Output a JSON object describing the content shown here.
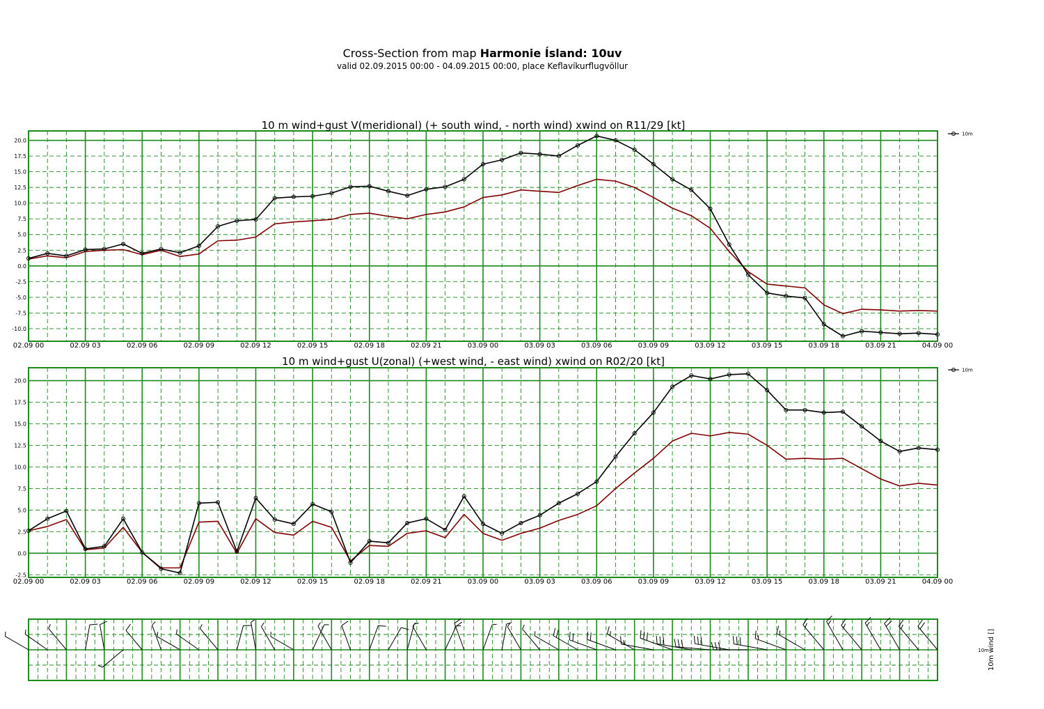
{
  "header": {
    "title_prefix": "Cross-Section from map ",
    "title_bold": "Harmonie Ísland: 10uv",
    "subtitle": "valid 02.09.2015 00:00 - 04.09.2015 00:00, place Keflavíkurflugvöllur"
  },
  "colors": {
    "grid": "#1a8a1a",
    "wind": "#800000",
    "gust": "#000000"
  },
  "chart_data": [
    {
      "type": "line",
      "title": "10 m wind+gust V(meridional) (+ south wind, - north wind) xwind on R11/29 [kt]",
      "x_tick_labels": [
        "02.09 00",
        "02.09 03",
        "02.09 06",
        "02.09 09",
        "02.09 12",
        "02.09 15",
        "02.09 18",
        "02.09 21",
        "03.09 00",
        "03.09 03",
        "03.09 06",
        "03.09 09",
        "03.09 12",
        "03.09 15",
        "03.09 18",
        "03.09 21",
        "04.09 00"
      ],
      "x_hours": [
        0,
        1,
        2,
        3,
        4,
        5,
        6,
        7,
        8,
        9,
        10,
        11,
        12,
        13,
        14,
        15,
        16,
        17,
        18,
        19,
        20,
        21,
        22,
        23,
        24,
        25,
        26,
        27,
        28,
        29,
        30,
        31,
        32,
        33,
        34,
        35,
        36,
        37,
        38,
        39,
        40,
        41,
        42,
        43,
        44,
        45,
        46,
        47,
        48
      ],
      "y_ticks": [
        20.0,
        17.5,
        15.0,
        12.5,
        10.0,
        7.5,
        5.0,
        2.5,
        0.0,
        -2.5,
        -5.0,
        -7.5,
        -10.0
      ],
      "ylim": [
        -12.0,
        21.5
      ],
      "legend": "10m",
      "series": [
        {
          "name": "10m gust",
          "color": "#000000",
          "markers": true,
          "values": [
            1.2,
            2.0,
            1.6,
            2.6,
            2.7,
            3.5,
            2.0,
            2.7,
            2.1,
            3.2,
            6.3,
            7.2,
            7.4,
            10.8,
            11.0,
            11.1,
            11.6,
            12.6,
            12.7,
            11.9,
            11.2,
            12.2,
            12.6,
            13.8,
            16.2,
            16.9,
            18.0,
            17.8,
            17.5,
            19.2,
            20.7,
            20.0,
            18.5,
            16.2,
            13.8,
            12.1,
            9.1,
            3.4,
            -1.4,
            -4.3,
            -4.8,
            -5.1,
            -9.3,
            -11.2,
            -10.4,
            -10.6,
            -10.8,
            -10.7,
            -10.9
          ]
        },
        {
          "name": "10m wind",
          "color": "#800000",
          "markers": false,
          "values": [
            1.1,
            1.6,
            1.3,
            2.3,
            2.5,
            2.6,
            1.8,
            2.5,
            1.5,
            1.9,
            4.0,
            4.1,
            4.6,
            6.7,
            7.0,
            7.2,
            7.4,
            8.2,
            8.4,
            7.9,
            7.5,
            8.2,
            8.6,
            9.4,
            10.9,
            11.3,
            12.1,
            11.9,
            11.7,
            12.8,
            13.8,
            13.5,
            12.5,
            10.9,
            9.2,
            8.0,
            6.0,
            2.3,
            -0.9,
            -2.9,
            -3.2,
            -3.5,
            -6.2,
            -7.6,
            -6.9,
            -7.0,
            -7.2,
            -7.1,
            -7.2
          ]
        }
      ]
    },
    {
      "type": "line",
      "title": "10 m wind+gust U(zonal) (+west wind, - east wind) xwind on R02/20 [kt]",
      "x_tick_labels": [
        "02.09 00",
        "02.09 03",
        "02.09 06",
        "02.09 09",
        "02.09 12",
        "02.09 15",
        "02.09 18",
        "02.09 21",
        "03.09 00",
        "03.09 03",
        "03.09 06",
        "03.09 09",
        "03.09 12",
        "03.09 15",
        "03.09 18",
        "03.09 21",
        "04.09 00"
      ],
      "x_hours": [
        0,
        1,
        2,
        3,
        4,
        5,
        6,
        7,
        8,
        9,
        10,
        11,
        12,
        13,
        14,
        15,
        16,
        17,
        18,
        19,
        20,
        21,
        22,
        23,
        24,
        25,
        26,
        27,
        28,
        29,
        30,
        31,
        32,
        33,
        34,
        35,
        36,
        37,
        38,
        39,
        40,
        41,
        42,
        43,
        44,
        45,
        46,
        47,
        48
      ],
      "y_ticks": [
        20.0,
        17.5,
        15.0,
        12.5,
        10.0,
        7.5,
        5.0,
        2.5,
        0.0,
        -2.5
      ],
      "ylim": [
        -2.8,
        21.5
      ],
      "legend": "10m",
      "series": [
        {
          "name": "10m gust",
          "color": "#000000",
          "markers": true,
          "values": [
            2.6,
            4.0,
            4.9,
            0.5,
            0.8,
            4.0,
            0.1,
            -1.8,
            -2.3,
            5.8,
            5.9,
            0.2,
            6.4,
            3.9,
            3.4,
            5.7,
            4.8,
            -1.1,
            1.4,
            1.2,
            3.5,
            4.0,
            2.7,
            6.6,
            3.4,
            2.3,
            3.5,
            4.4,
            5.8,
            6.9,
            8.3,
            11.2,
            13.9,
            16.3,
            19.3,
            20.6,
            20.2,
            20.7,
            20.8,
            18.9,
            16.6,
            16.6,
            16.3,
            16.4,
            14.7,
            13.0,
            11.8,
            12.2,
            12.0
          ]
        },
        {
          "name": "10m wind",
          "color": "#800000",
          "markers": false,
          "values": [
            2.6,
            3.1,
            3.9,
            0.4,
            0.6,
            3.0,
            0.1,
            -1.7,
            -1.7,
            3.6,
            3.7,
            0.0,
            4.0,
            2.4,
            2.1,
            3.7,
            3.0,
            -0.9,
            0.9,
            0.8,
            2.3,
            2.6,
            1.8,
            4.5,
            2.3,
            1.5,
            2.3,
            2.9,
            3.8,
            4.5,
            5.5,
            7.5,
            9.3,
            11.0,
            13.0,
            13.9,
            13.6,
            14.0,
            13.8,
            12.5,
            10.9,
            11.0,
            10.9,
            11.0,
            9.8,
            8.6,
            7.8,
            8.1,
            7.9
          ]
        }
      ]
    },
    {
      "type": "wind_barbs",
      "y_label": "10m wind []",
      "row_label": "10m",
      "barb_directions_deg": [
        300,
        305,
        320,
        10,
        350,
        230,
        320,
        340,
        300,
        305,
        320,
        15,
        350,
        330,
        300,
        25,
        330,
        340,
        20,
        30,
        15,
        330,
        25,
        340,
        20,
        10,
        330,
        320,
        300,
        300,
        290,
        290,
        300,
        280,
        290,
        280,
        275,
        280,
        270,
        280,
        290,
        300,
        320,
        330,
        320,
        330,
        330,
        320,
        320
      ]
    }
  ]
}
